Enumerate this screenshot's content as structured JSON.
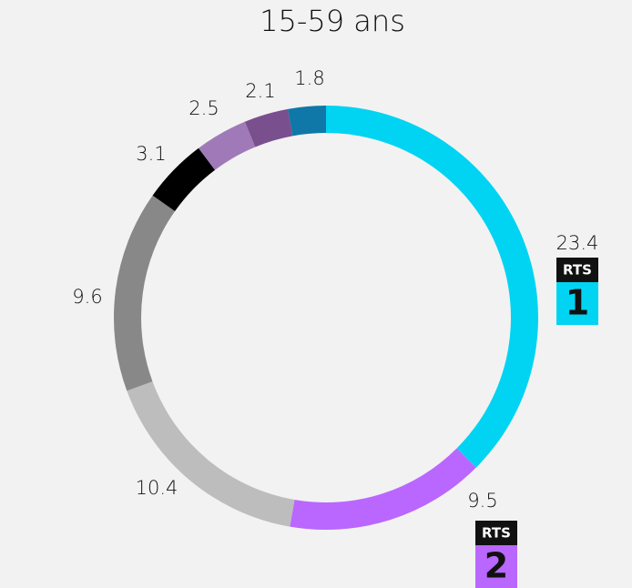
{
  "chart_data": {
    "type": "donut",
    "title": "15-59 ans",
    "values": [
      23.4,
      9.5,
      10.4,
      9.6,
      3.1,
      2.5,
      2.1,
      1.8
    ],
    "colors": [
      "#00d4f2",
      "#b967ff",
      "#bdbdbd",
      "#888888",
      "#000000",
      "#a07ab8",
      "#7a4f8e",
      "#0f78a8"
    ],
    "logos": [
      {
        "text": "RTS",
        "number": "1",
        "color": "#00d4f2"
      },
      {
        "text": "RTS",
        "number": "2",
        "color": "#b967ff"
      },
      null,
      null,
      null,
      null,
      null,
      null
    ]
  }
}
